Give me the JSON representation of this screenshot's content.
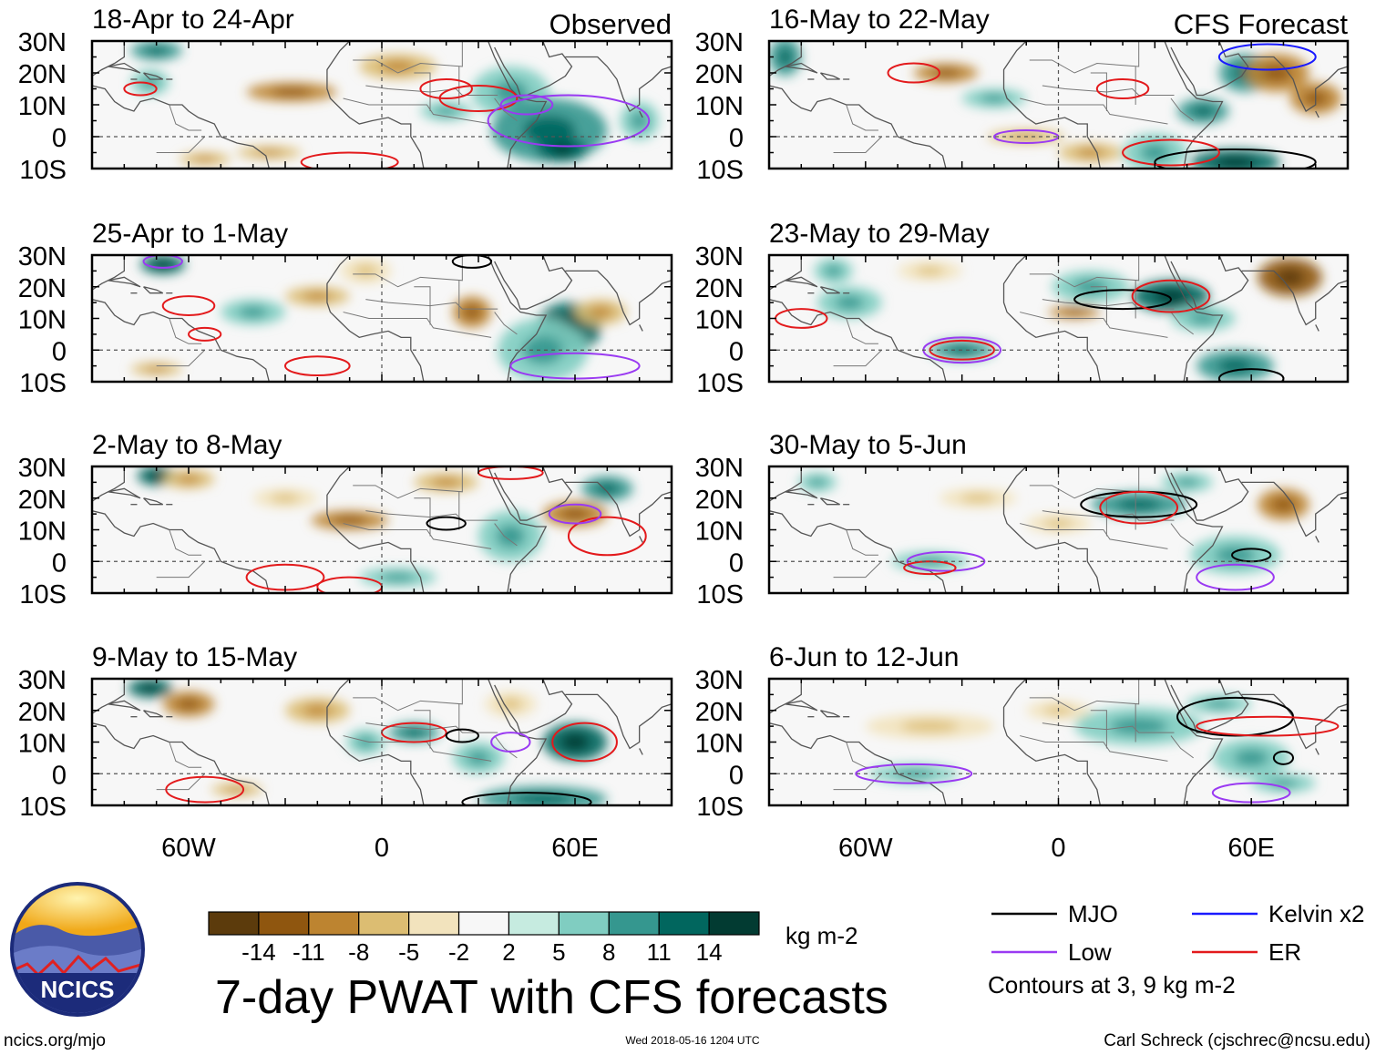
{
  "labels": {
    "observed": "Observed",
    "forecast": "CFS Forecast",
    "main_title": "7-day PWAT with CFS forecasts",
    "units": "kg m-2",
    "contour_note": "Contours at 3, 9 kg m-2",
    "site": "ncics.org/mjo",
    "timestamp": "Wed 2018-05-16 1204 UTC",
    "author": "Carl Schreck (cjschrec@ncsu.edu)",
    "logo_text": "NCICS"
  },
  "chart_data": {
    "type": "heatmap",
    "title": "7-day PWAT with CFS forecasts",
    "field": "Precipitable water anomaly",
    "units": "kg m-2",
    "lat_ticks": [
      "30N",
      "20N",
      "10N",
      "0",
      "10S"
    ],
    "lon_ticks": [
      "60W",
      "0",
      "60E"
    ],
    "lat_range": [
      -10,
      30
    ],
    "panels": [
      {
        "column": "Observed",
        "period": "18-Apr to 24-Apr"
      },
      {
        "column": "Observed",
        "period": "25-Apr to 1-May"
      },
      {
        "column": "Observed",
        "period": "2-May to 8-May"
      },
      {
        "column": "Observed",
        "period": "9-May to 15-May"
      },
      {
        "column": "CFS Forecast",
        "period": "16-May to 22-May"
      },
      {
        "column": "CFS Forecast",
        "period": "23-May to 29-May"
      },
      {
        "column": "CFS Forecast",
        "period": "30-May to 5-Jun"
      },
      {
        "column": "CFS Forecast",
        "period": "6-Jun to 12-Jun"
      }
    ],
    "colorbar": {
      "colors": [
        "#5c3b0c",
        "#8f560f",
        "#bd8430",
        "#dcbd72",
        "#f2e3bd",
        "#f7f7f7",
        "#c6ebe0",
        "#80cdc1",
        "#35978f",
        "#01665e",
        "#023b32"
      ],
      "labels": [
        "-14",
        "-11",
        "-8",
        "-5",
        "-2",
        "2",
        "5",
        "8",
        "11",
        "14"
      ]
    },
    "legend": [
      {
        "name": "MJO",
        "color": "#000000"
      },
      {
        "name": "Kelvin x2",
        "color": "#1a1aff"
      },
      {
        "name": "Low",
        "color": "#9a3af2"
      },
      {
        "name": "ER",
        "color": "#e31a1c"
      }
    ]
  }
}
